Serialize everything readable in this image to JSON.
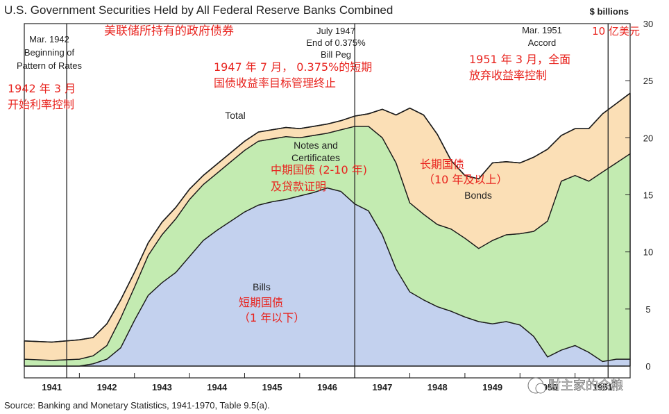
{
  "chart_data": {
    "type": "area",
    "stacked": true,
    "title": "U.S. Government Securities Held by All Federal Reserve Banks Combined",
    "subtitle_cn": "美联储所持有的政府债券",
    "y_unit": "$ billions",
    "y_unit_cn": "10 亿美元",
    "ylim": [
      0,
      30
    ],
    "yticks": [
      "0",
      "5",
      "10",
      "15",
      "20",
      "25",
      "30"
    ],
    "xlim": [
      1941.0,
      1952.0
    ],
    "xticks": [
      "1941",
      "1942",
      "1943",
      "1944",
      "1945",
      "1946",
      "1947",
      "1948",
      "1949",
      "1950",
      "1951"
    ],
    "source": "Source:  Banking and Monetary Statistics, 1941-1970, Table 9.5(a).",
    "watermark": "财主家的余粮",
    "series": [
      {
        "name": "Bills",
        "name_cn": "短期国债",
        "name_cn_2": "（1 年以下）",
        "color": "#c3d1ee",
        "x": [
          1941.0,
          1941.5,
          1942.0,
          1942.25,
          1942.5,
          1942.75,
          1943.0,
          1943.25,
          1943.5,
          1943.75,
          1944.0,
          1944.25,
          1944.5,
          1944.75,
          1945.0,
          1945.25,
          1945.5,
          1945.75,
          1946.0,
          1946.25,
          1946.5,
          1946.75,
          1947.0,
          1947.25,
          1947.5,
          1947.75,
          1948.0,
          1948.25,
          1948.5,
          1948.75,
          1949.0,
          1949.25,
          1949.5,
          1949.75,
          1950.0,
          1950.25,
          1950.5,
          1950.75,
          1951.0,
          1951.25,
          1951.5,
          1951.75,
          1952.0
        ],
        "y": [
          0.0,
          0.0,
          0.0,
          0.2,
          0.6,
          1.6,
          4.0,
          6.2,
          7.3,
          8.2,
          9.6,
          11.0,
          11.9,
          12.7,
          13.5,
          14.1,
          14.4,
          14.6,
          14.9,
          15.2,
          15.6,
          15.3,
          14.2,
          13.6,
          11.5,
          8.5,
          6.5,
          5.8,
          5.2,
          4.8,
          4.3,
          3.9,
          3.7,
          3.9,
          3.6,
          2.6,
          0.8,
          1.4,
          1.8,
          1.2,
          0.4,
          0.6,
          0.6
        ]
      },
      {
        "name": "Notes and Certificates",
        "name_line2": "Certificates",
        "name_cn": "中期国债 (2-10 年)",
        "name_cn_2": "及贷款证明",
        "color": "#c3ebb1",
        "x": [
          1941.0,
          1941.5,
          1942.0,
          1942.25,
          1942.5,
          1942.75,
          1943.0,
          1943.25,
          1943.5,
          1943.75,
          1944.0,
          1944.25,
          1944.5,
          1944.75,
          1945.0,
          1945.25,
          1945.5,
          1945.75,
          1946.0,
          1946.25,
          1946.5,
          1946.75,
          1947.0,
          1947.25,
          1947.5,
          1947.75,
          1948.0,
          1948.25,
          1948.5,
          1948.75,
          1949.0,
          1949.25,
          1949.5,
          1949.75,
          1950.0,
          1950.25,
          1950.5,
          1950.75,
          1951.0,
          1951.25,
          1951.5,
          1951.75,
          1952.0
        ],
        "y": [
          0.6,
          0.5,
          0.6,
          0.7,
          1.2,
          2.6,
          2.9,
          3.5,
          4.2,
          4.7,
          5.0,
          4.9,
          5.0,
          5.2,
          5.4,
          5.6,
          5.5,
          5.5,
          5.1,
          5.0,
          4.8,
          5.4,
          6.8,
          7.4,
          8.5,
          9.3,
          7.8,
          7.5,
          7.2,
          7.2,
          6.9,
          6.4,
          7.3,
          7.6,
          8.0,
          9.2,
          11.9,
          14.8,
          14.9,
          15.0,
          16.6,
          17.2,
          18.0
        ]
      },
      {
        "name": "Bonds",
        "name_cn": "长期国债",
        "name_cn_2": "（10 年及以上）",
        "color": "#fbdfb6",
        "x": [
          1941.0,
          1941.5,
          1942.0,
          1942.25,
          1942.5,
          1942.75,
          1943.0,
          1943.25,
          1943.5,
          1943.75,
          1944.0,
          1944.25,
          1944.5,
          1944.75,
          1945.0,
          1945.25,
          1945.5,
          1945.75,
          1946.0,
          1946.25,
          1946.5,
          1946.75,
          1947.0,
          1947.25,
          1947.5,
          1947.75,
          1948.0,
          1948.25,
          1948.5,
          1948.75,
          1949.0,
          1949.25,
          1949.5,
          1949.75,
          1950.0,
          1950.25,
          1950.5,
          1950.75,
          1951.0,
          1951.25,
          1951.5,
          1951.75,
          1952.0
        ],
        "y": [
          1.6,
          1.6,
          1.7,
          1.6,
          1.9,
          1.6,
          1.3,
          1.1,
          1.1,
          1.0,
          0.9,
          0.8,
          0.8,
          0.8,
          0.8,
          0.8,
          0.8,
          0.8,
          0.8,
          0.8,
          0.8,
          0.8,
          0.9,
          1.1,
          2.5,
          4.2,
          8.3,
          8.7,
          7.9,
          6.0,
          5.5,
          6.1,
          6.8,
          6.4,
          6.2,
          6.5,
          6.3,
          4.0,
          4.1,
          4.6,
          5.1,
          5.2,
          5.3
        ]
      }
    ],
    "total_label": "Total",
    "annotations": [
      {
        "x": 1941.77,
        "lines": [
          "Mar. 1942",
          "Beginning of",
          "Pattern of Rates"
        ],
        "cn": [
          "1942 年 3 月",
          "开始利率控制"
        ]
      },
      {
        "x": 1947.0,
        "lines": [
          "July 1947",
          "End of 0.375%",
          "Bill Peg"
        ],
        "cn": [
          "1947 年 7 月，  0.375%的短期",
          "国债收益率目标管理终止"
        ]
      },
      {
        "x": 1951.6,
        "lines": [
          "Mar. 1951",
          "Accord"
        ],
        "cn": [
          "1951 年 3 月，全面",
          "放弃收益率控制"
        ]
      }
    ]
  }
}
